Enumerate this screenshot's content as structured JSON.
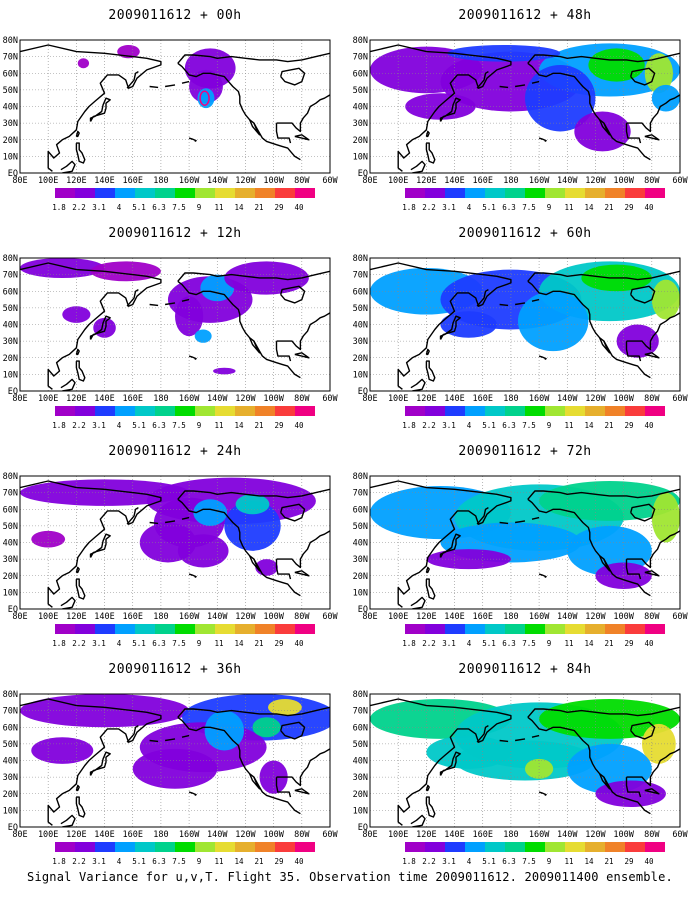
{
  "figure": {
    "footer": "Signal Variance for u,v,T. Flight 35. Observation time 2009011612. 2009011400 ensemble."
  },
  "panels": [
    {
      "title": "2009011612 + 00h",
      "lead_hours": 0
    },
    {
      "title": "2009011612 + 12h",
      "lead_hours": 12
    },
    {
      "title": "2009011612 + 24h",
      "lead_hours": 24
    },
    {
      "title": "2009011612 + 36h",
      "lead_hours": 36
    },
    {
      "title": "2009011612 + 48h",
      "lead_hours": 48
    },
    {
      "title": "2009011612 + 60h",
      "lead_hours": 60
    },
    {
      "title": "2009011612 + 72h",
      "lead_hours": 72
    },
    {
      "title": "2009011612 + 84h",
      "lead_hours": 84
    }
  ],
  "axes": {
    "lat_labels": [
      "80N",
      "70N",
      "60N",
      "50N",
      "40N",
      "30N",
      "20N",
      "10N",
      "EQ"
    ],
    "lon_labels": [
      "80E",
      "100E",
      "120E",
      "140E",
      "160E",
      "180",
      "160W",
      "140W",
      "120W",
      "100W",
      "80W",
      "60W"
    ],
    "lon_range": [
      80,
      300
    ],
    "lat_range": [
      0,
      80
    ]
  },
  "colorbar": {
    "levels": [
      "1.8",
      "2.2",
      "3.1",
      "4",
      "5.1",
      "6.3",
      "7.5",
      "9",
      "11",
      "14",
      "21",
      "29",
      "40"
    ],
    "colors": [
      "#a000c8",
      "#8200dc",
      "#1e3cff",
      "#00a0ff",
      "#00c8c8",
      "#00d28c",
      "#00dc00",
      "#a0e632",
      "#e6dc32",
      "#e6af2d",
      "#f08228",
      "#fa3c3c",
      "#f00082"
    ]
  },
  "chart_data": {
    "type": "heatmap",
    "description_units": "signal variance",
    "x_label": "",
    "y_label": "",
    "x_range_deg_lon": [
      80,
      300
    ],
    "y_range_deg_lat": [
      0,
      80
    ],
    "grid": true,
    "legend": "bottom"
  }
}
